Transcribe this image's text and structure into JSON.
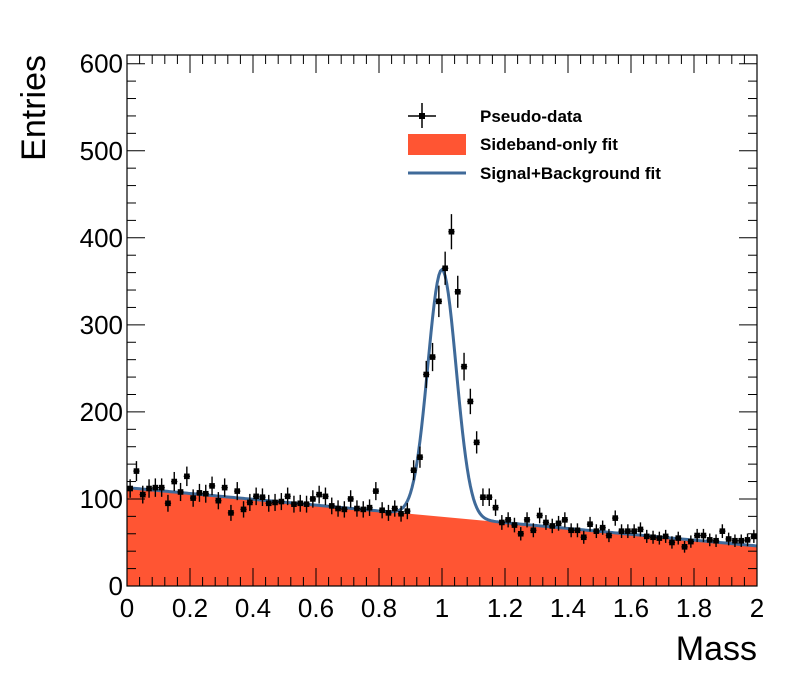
{
  "chart_data": {
    "type": "scatter",
    "xlabel": "Mass",
    "ylabel": "Entries",
    "xlim": [
      0,
      2
    ],
    "ylim": [
      0,
      610
    ],
    "x_ticks": [
      0,
      0.2,
      0.4,
      0.6,
      0.8,
      1,
      1.2,
      1.4,
      1.6,
      1.8,
      2
    ],
    "x_tick_labels": [
      "0",
      "0.2",
      "0.4",
      "0.6",
      "0.8",
      "1",
      "1.2",
      "1.4",
      "1.6",
      "1.8",
      "2"
    ],
    "y_ticks": [
      0,
      100,
      200,
      300,
      400,
      500,
      600
    ],
    "y_tick_labels": [
      "0",
      "100",
      "200",
      "300",
      "400",
      "500",
      "600"
    ],
    "grid": false,
    "legend_position": "top-right",
    "colors": {
      "data": "#000000",
      "sideband_fill": "#ff5533",
      "sb_curve": "#3f6a99"
    },
    "legend": [
      {
        "label": "Pseudo-data",
        "style": "marker"
      },
      {
        "label": "Sideband-only fit",
        "style": "fill"
      },
      {
        "label": "Signal+Background fit",
        "style": "line"
      }
    ],
    "background_fit": {
      "y_at_0": 113,
      "y_at_2": 46
    },
    "signal": {
      "mean": 1.0,
      "sigma": 0.045,
      "amplitude": 284
    },
    "data_points": {
      "x": [
        0.01,
        0.03,
        0.05,
        0.07,
        0.09,
        0.11,
        0.13,
        0.15,
        0.17,
        0.19,
        0.21,
        0.23,
        0.25,
        0.27,
        0.29,
        0.31,
        0.33,
        0.35,
        0.37,
        0.39,
        0.41,
        0.43,
        0.45,
        0.47,
        0.49,
        0.51,
        0.53,
        0.55,
        0.57,
        0.59,
        0.61,
        0.63,
        0.65,
        0.67,
        0.69,
        0.71,
        0.73,
        0.75,
        0.77,
        0.79,
        0.81,
        0.83,
        0.85,
        0.87,
        0.89,
        0.91,
        0.93,
        0.95,
        0.97,
        0.99,
        1.01,
        1.03,
        1.05,
        1.07,
        1.09,
        1.11,
        1.13,
        1.15,
        1.17,
        1.19,
        1.21,
        1.23,
        1.25,
        1.27,
        1.29,
        1.31,
        1.33,
        1.35,
        1.37,
        1.39,
        1.41,
        1.43,
        1.45,
        1.47,
        1.49,
        1.51,
        1.53,
        1.55,
        1.57,
        1.59,
        1.61,
        1.63,
        1.65,
        1.67,
        1.69,
        1.71,
        1.73,
        1.75,
        1.77,
        1.79,
        1.81,
        1.83,
        1.85,
        1.87,
        1.89,
        1.91,
        1.93,
        1.95,
        1.97,
        1.99
      ],
      "y": [
        112,
        132,
        105,
        112,
        113,
        113,
        95,
        120,
        108,
        126,
        101,
        107,
        106,
        115,
        98,
        113,
        84,
        109,
        88,
        96,
        103,
        102,
        95,
        96,
        97,
        103,
        94,
        95,
        94,
        100,
        105,
        103,
        92,
        89,
        88,
        100,
        89,
        88,
        90,
        109,
        87,
        84,
        89,
        83,
        86,
        133,
        148,
        243,
        263,
        327,
        365,
        407,
        338,
        252,
        212,
        165,
        102,
        102,
        90,
        73,
        76,
        70,
        60,
        76,
        64,
        81,
        73,
        69,
        72,
        76,
        64,
        64,
        56,
        71,
        63,
        67,
        58,
        78,
        63,
        63,
        63,
        65,
        57,
        56,
        55,
        57,
        50,
        55,
        45,
        51,
        58,
        58,
        53,
        52,
        63,
        54,
        52,
        52,
        53,
        57
      ],
      "errors": [
        10.6,
        11.5,
        10.2,
        10.6,
        10.6,
        10.6,
        9.7,
        11.0,
        10.4,
        11.2,
        10.0,
        10.3,
        10.3,
        10.7,
        9.9,
        10.6,
        9.2,
        10.4,
        9.4,
        9.8,
        10.1,
        10.1,
        9.7,
        9.8,
        9.8,
        10.1,
        9.7,
        9.7,
        9.7,
        10.0,
        10.2,
        10.1,
        9.6,
        9.4,
        9.4,
        10.0,
        9.4,
        9.4,
        9.5,
        10.4,
        9.3,
        9.2,
        9.4,
        9.1,
        9.3,
        11.5,
        12.2,
        15.6,
        16.2,
        18.1,
        19.1,
        20.2,
        18.4,
        15.9,
        14.6,
        12.8,
        10.1,
        10.1,
        9.5,
        8.5,
        8.7,
        8.4,
        7.7,
        8.7,
        8.0,
        9.0,
        8.5,
        8.3,
        8.5,
        8.7,
        8.0,
        8.0,
        7.5,
        8.4,
        7.9,
        8.2,
        7.6,
        8.8,
        7.9,
        7.9,
        7.9,
        8.1,
        7.5,
        7.5,
        7.4,
        7.5,
        7.1,
        7.4,
        6.7,
        7.1,
        7.6,
        7.6,
        7.3,
        7.2,
        7.9,
        7.3,
        7.2,
        7.2,
        7.3,
        7.5
      ]
    }
  }
}
